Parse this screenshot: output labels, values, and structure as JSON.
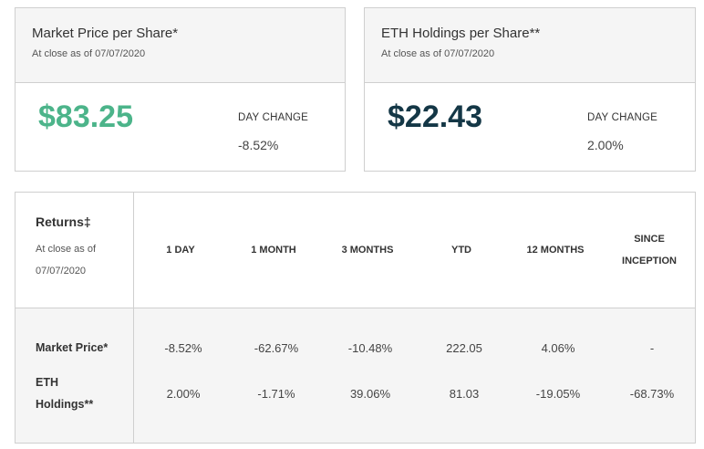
{
  "market_card": {
    "title": "Market Price per Share*",
    "subtitle": "At close as of 07/07/2020",
    "price": "$83.25",
    "price_color": "#4cb48a",
    "day_change_label": "DAY CHANGE",
    "day_change_value": "-8.52%"
  },
  "eth_card": {
    "title": "ETH Holdings per Share**",
    "subtitle": "At close as of 07/07/2020",
    "price": "$22.43",
    "price_color": "#143746",
    "day_change_label": "DAY CHANGE",
    "day_change_value": "2.00%"
  },
  "returns": {
    "title": "Returns‡",
    "subtitle": "At close as of 07/07/2020",
    "columns": [
      "1 DAY",
      "1 MONTH",
      "3 MONTHS",
      "YTD",
      "12 MONTHS",
      "SINCE\nINCEPTION"
    ],
    "rows": [
      {
        "label": "Market Price*",
        "values": [
          "-8.52%",
          "-62.67%",
          "-10.48%",
          "222.05",
          "4.06%",
          "-"
        ]
      },
      {
        "label": "ETH Holdings**",
        "values": [
          "2.00%",
          "-1.71%",
          "39.06%",
          "81.03",
          "-19.05%",
          "-68.73%"
        ]
      }
    ]
  }
}
